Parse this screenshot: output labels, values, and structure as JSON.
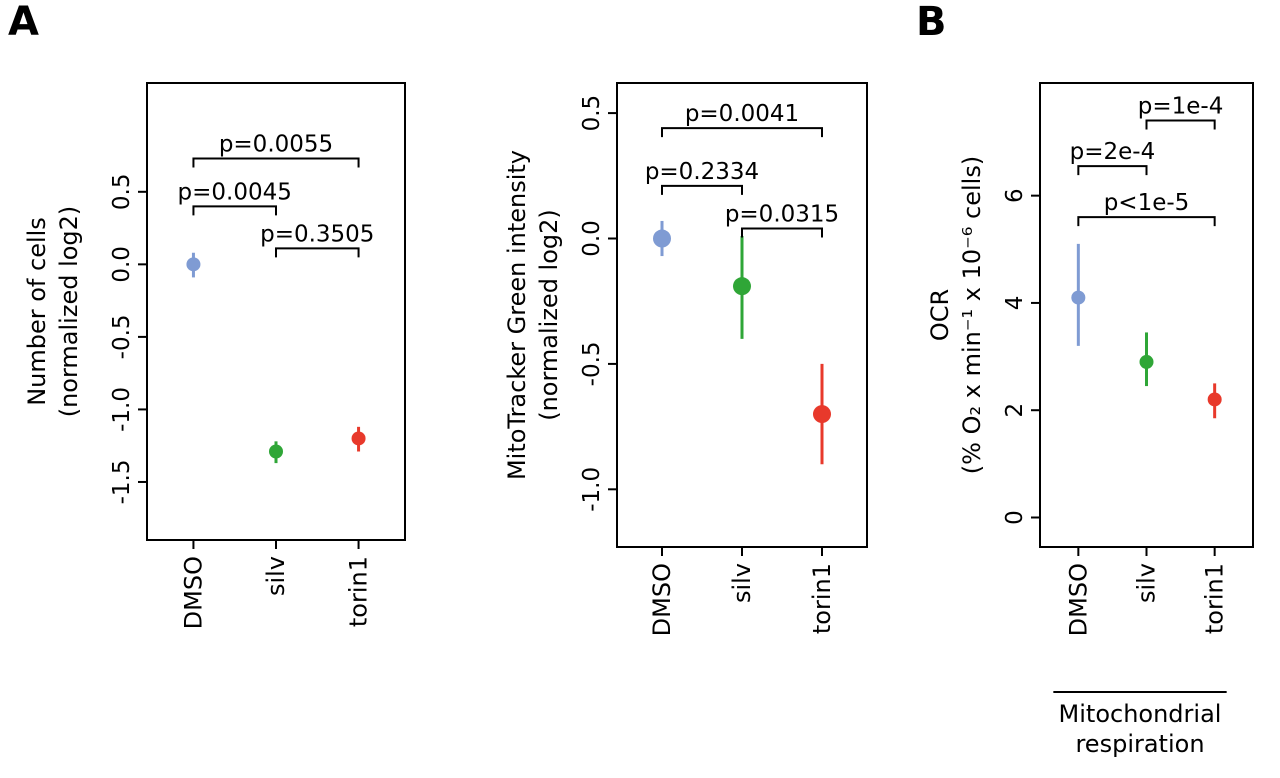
{
  "panels": {
    "a_label": "A",
    "b_label": "B"
  },
  "chart_data": [
    {
      "id": "number-of-cells",
      "type": "pointrange",
      "title": "",
      "ylabel_lines": [
        "Number of cells",
        "(normalized log2)"
      ],
      "categories": [
        "DMSO",
        "silv",
        "torin1"
      ],
      "series": [
        {
          "category": "DMSO",
          "mean": 0.0,
          "lo": -0.09,
          "hi": 0.08,
          "color": "#7f9bd3"
        },
        {
          "category": "silv",
          "mean": -1.29,
          "lo": -1.37,
          "hi": -1.22,
          "color": "#2fa637"
        },
        {
          "category": "torin1",
          "mean": -1.2,
          "lo": -1.29,
          "hi": -1.12,
          "color": "#e8392b"
        }
      ],
      "yticks": [
        0.5,
        0,
        -0.5,
        -1,
        -1.5
      ],
      "ytick_labels": [
        "0.5",
        "0.0",
        "-0.5",
        "-1.0",
        "-1.5"
      ],
      "ylim": [
        -1.9,
        1.25
      ],
      "point_radius": 7,
      "grid": false,
      "comparisons": [
        {
          "label": "p=0.0055",
          "from": "DMSO",
          "to": "torin1",
          "y": 0.73
        },
        {
          "label": "p=0.0045",
          "from": "DMSO",
          "to": "silv",
          "y": 0.4
        },
        {
          "label": "p=0.3505",
          "from": "silv",
          "to": "torin1",
          "y": 0.11
        }
      ]
    },
    {
      "id": "mitotracker-green-intensity",
      "type": "pointrange",
      "title": "",
      "ylabel_lines": [
        "MitoTracker Green intensity",
        "(normalized log2)"
      ],
      "categories": [
        "DMSO",
        "silv",
        "torin1"
      ],
      "series": [
        {
          "category": "DMSO",
          "mean": 0.0,
          "lo": -0.07,
          "hi": 0.07,
          "color": "#7f9bd3"
        },
        {
          "category": "silv",
          "mean": -0.19,
          "lo": -0.4,
          "hi": 0.01,
          "color": "#2fa637"
        },
        {
          "category": "torin1",
          "mean": -0.7,
          "lo": -0.9,
          "hi": -0.5,
          "color": "#e8392b"
        }
      ],
      "yticks": [
        0.5,
        0,
        -0.5,
        -1
      ],
      "ytick_labels": [
        "0.5",
        "0.0",
        "-0.5",
        "-1.0"
      ],
      "ylim": [
        -1.23,
        0.62
      ],
      "point_radius": 9,
      "grid": false,
      "comparisons": [
        {
          "label": "p=0.0041",
          "from": "DMSO",
          "to": "torin1",
          "y": 0.44
        },
        {
          "label": "p=0.2334",
          "from": "DMSO",
          "to": "silv",
          "y": 0.21
        },
        {
          "label": "p=0.0315",
          "from": "silv",
          "to": "torin1",
          "y": 0.04
        }
      ]
    },
    {
      "id": "ocr",
      "type": "pointrange",
      "title": "",
      "ylabel_lines": [
        "OCR",
        "(% O₂ x min⁻¹ x 10⁻⁶ cells)"
      ],
      "categories": [
        "DMSO",
        "silv",
        "torin1"
      ],
      "series": [
        {
          "category": "DMSO",
          "mean": 4.1,
          "lo": 3.2,
          "hi": 5.1,
          "color": "#7f9bd3"
        },
        {
          "category": "silv",
          "mean": 2.9,
          "lo": 2.45,
          "hi": 3.45,
          "color": "#2fa637"
        },
        {
          "category": "torin1",
          "mean": 2.2,
          "lo": 1.85,
          "hi": 2.5,
          "color": "#e8392b"
        }
      ],
      "yticks": [
        0,
        2,
        4,
        6
      ],
      "ytick_labels": [
        "0",
        "2",
        "4",
        "6"
      ],
      "ylim": [
        -0.55,
        8.1
      ],
      "point_radius": 7,
      "grid": false,
      "comparisons": [
        {
          "label": "p=1e-4",
          "from": "silv",
          "to": "torin1",
          "y": 7.4
        },
        {
          "label": "p=2e-4",
          "from": "DMSO",
          "to": "silv",
          "y": 6.55
        },
        {
          "label": "p<1e-5",
          "from": "DMSO",
          "to": "torin1",
          "y": 5.6
        }
      ],
      "group_label_lines": [
        "Mitochondrial",
        "respiration"
      ]
    }
  ]
}
